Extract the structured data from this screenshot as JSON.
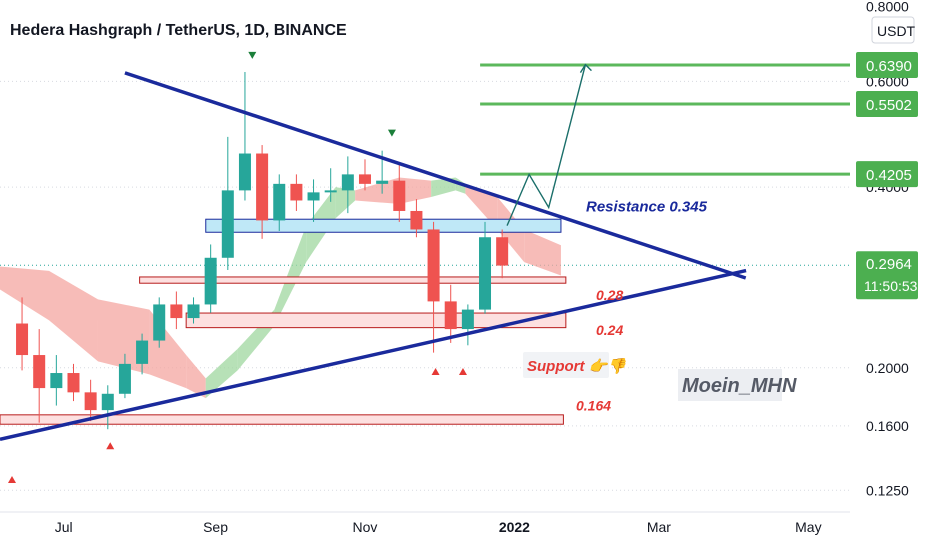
{
  "header": {
    "title": "Hedera Hashgraph / TetherUS, 1D, BINANCE"
  },
  "colors": {
    "candle_up": "#26a69a",
    "candle_down": "#ef5350",
    "trendline": "#1a2a9c",
    "target_line": "#5cb85c",
    "resistance_zone": "#bfe8f7",
    "support_zone": "#fde0e0",
    "cloud_bull": "#9fd79f",
    "cloud_bear": "#f4a6a0",
    "label_red": "#e53935",
    "label_navy": "#1a2a9c",
    "price_badge": "#4caf50"
  },
  "chart_data": {
    "type": "candlestick",
    "title": "Hedera Hashgraph / TetherUS, 1D, BINANCE",
    "y_axis": {
      "unit": "USDT",
      "scale": "log",
      "range": [
        0.115,
        0.82
      ],
      "tick_labels": [
        "0.8000",
        "0.6000",
        "0.4000",
        "0.2000",
        "0.1600",
        "0.1250"
      ]
    },
    "x_axis": {
      "tick_labels": [
        "Jul",
        "Sep",
        "Nov",
        "2022",
        "Mar",
        "May"
      ],
      "range": [
        "2021-06-05",
        "2022-05-18"
      ]
    },
    "price_tags": [
      {
        "value": "0.6390",
        "kind": "target"
      },
      {
        "value": "0.5502",
        "kind": "target"
      },
      {
        "value": "0.4205",
        "kind": "target"
      },
      {
        "value": "0.2964",
        "kind": "current"
      }
    ],
    "countdown": "11:50:53",
    "current_price": 0.2964,
    "targets": [
      0.639,
      0.5502,
      0.4205
    ],
    "levels": [
      {
        "label": "Resistance 0.345",
        "value": 0.345,
        "kind": "resistance"
      },
      {
        "label": "0.28",
        "value": 0.28,
        "kind": "support"
      },
      {
        "label": "0.24",
        "value": 0.24,
        "kind": "support"
      },
      {
        "label": "0.164",
        "value": 0.164,
        "kind": "support"
      }
    ],
    "annotations": {
      "support": "Support 👉👎",
      "watermark": "Moein_MHN"
    },
    "trendlines": [
      {
        "name": "descending",
        "from": [
          "2021-07-26",
          0.62
        ],
        "to": [
          "2022-03-31",
          0.287
        ]
      },
      {
        "name": "ascending",
        "from": [
          "2021-06-05",
          0.152
        ],
        "to": [
          "2022-03-31",
          0.287
        ]
      }
    ],
    "series": [
      {
        "type": "ohlc",
        "values": [
          [
            "2021-06-14",
            0.237,
            0.262,
            0.198,
            0.21
          ],
          [
            "2021-06-21",
            0.21,
            0.232,
            0.162,
            0.185
          ],
          [
            "2021-06-28",
            0.185,
            0.21,
            0.173,
            0.196
          ],
          [
            "2021-07-05",
            0.196,
            0.203,
            0.176,
            0.182
          ],
          [
            "2021-07-12",
            0.182,
            0.191,
            0.163,
            0.17
          ],
          [
            "2021-07-19",
            0.17,
            0.187,
            0.158,
            0.181
          ],
          [
            "2021-07-26",
            0.181,
            0.211,
            0.178,
            0.203
          ],
          [
            "2021-08-02",
            0.203,
            0.228,
            0.195,
            0.222
          ],
          [
            "2021-08-09",
            0.222,
            0.262,
            0.216,
            0.255
          ],
          [
            "2021-08-16",
            0.255,
            0.268,
            0.232,
            0.242
          ],
          [
            "2021-08-23",
            0.242,
            0.262,
            0.237,
            0.255
          ],
          [
            "2021-08-30",
            0.255,
            0.321,
            0.247,
            0.305
          ],
          [
            "2021-09-06",
            0.305,
            0.485,
            0.291,
            0.395
          ],
          [
            "2021-09-13",
            0.395,
            0.622,
            0.38,
            0.455
          ],
          [
            "2021-09-20",
            0.455,
            0.47,
            0.328,
            0.352
          ],
          [
            "2021-09-27",
            0.352,
            0.42,
            0.338,
            0.405
          ],
          [
            "2021-10-04",
            0.405,
            0.42,
            0.365,
            0.38
          ],
          [
            "2021-10-11",
            0.38,
            0.412,
            0.35,
            0.392
          ],
          [
            "2021-10-18",
            0.392,
            0.43,
            0.378,
            0.395
          ],
          [
            "2021-10-25",
            0.395,
            0.45,
            0.362,
            0.42
          ],
          [
            "2021-11-01",
            0.42,
            0.445,
            0.395,
            0.405
          ],
          [
            "2021-11-08",
            0.405,
            0.46,
            0.39,
            0.41
          ],
          [
            "2021-11-15",
            0.41,
            0.438,
            0.35,
            0.365
          ],
          [
            "2021-11-22",
            0.365,
            0.382,
            0.33,
            0.34
          ],
          [
            "2021-11-29",
            0.34,
            0.35,
            0.212,
            0.258
          ],
          [
            "2021-12-06",
            0.258,
            0.275,
            0.22,
            0.232
          ],
          [
            "2021-12-13",
            0.232,
            0.255,
            0.218,
            0.25
          ],
          [
            "2021-12-20",
            0.25,
            0.35,
            0.246,
            0.33
          ],
          [
            "2021-12-27",
            0.33,
            0.34,
            0.282,
            0.296
          ]
        ]
      }
    ],
    "projection": {
      "path": [
        [
          "2021-12-29",
          0.345
        ],
        [
          "2022-01-07",
          0.42
        ],
        [
          "2022-01-15",
          0.37
        ],
        [
          "2022-01-30",
          0.64
        ]
      ]
    }
  }
}
